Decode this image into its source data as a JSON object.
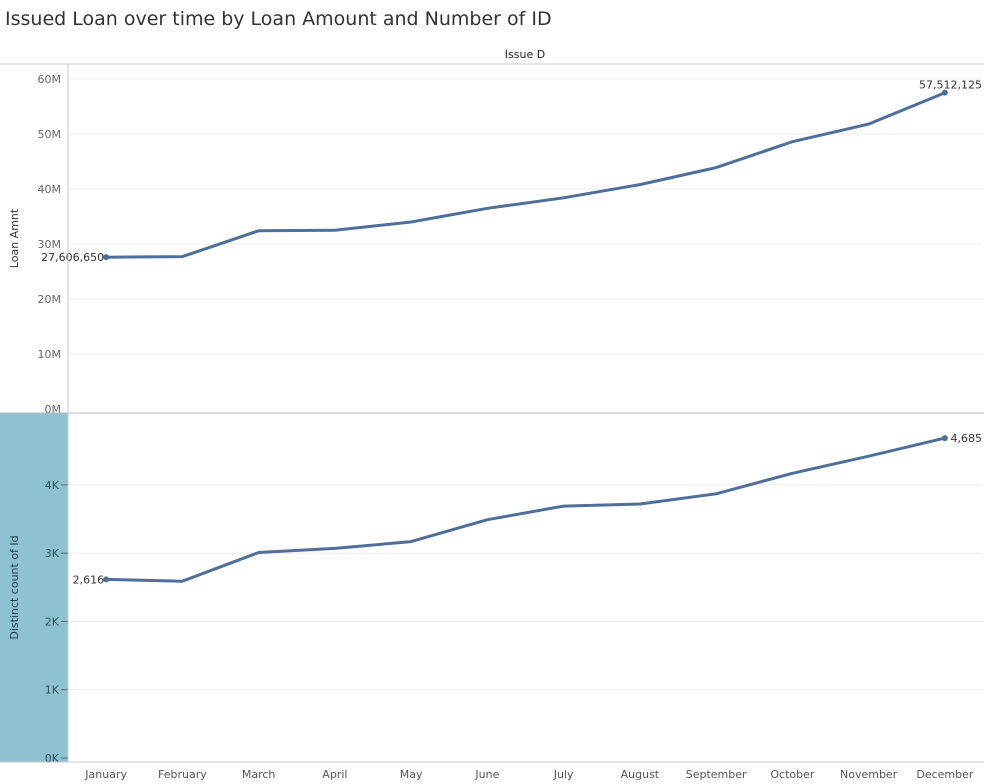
{
  "title": "Issued Loan over time by Loan Amount and Number of ID",
  "chart_data": [
    {
      "type": "line",
      "column_header": "Issue D",
      "ylabel": "Loan Amnt",
      "categories": [
        "January",
        "February",
        "March",
        "April",
        "May",
        "June",
        "July",
        "August",
        "September",
        "October",
        "November",
        "December"
      ],
      "values": [
        27606650,
        27700000,
        32400000,
        32500000,
        34000000,
        36500000,
        38400000,
        40800000,
        43900000,
        48600000,
        51800000,
        57512125
      ],
      "ylim": [
        0,
        62000000
      ],
      "yticks": [
        0,
        10000000,
        20000000,
        30000000,
        40000000,
        50000000,
        60000000
      ],
      "ytick_labels": [
        "0M",
        "10M",
        "20M",
        "30M",
        "40M",
        "50M",
        "60M"
      ],
      "labels": {
        "first": "27,606,650",
        "last": "57,512,125"
      },
      "color": "#4e6f99",
      "grid": true
    },
    {
      "type": "line",
      "ylabel": "Distinct count of Id",
      "categories": [
        "January",
        "February",
        "March",
        "April",
        "May",
        "June",
        "July",
        "August",
        "September",
        "October",
        "November",
        "December"
      ],
      "values": [
        2616,
        2590,
        3010,
        3070,
        3170,
        3490,
        3690,
        3720,
        3870,
        4170,
        4420,
        4685
      ],
      "ylim": [
        0,
        4980
      ],
      "yticks": [
        0,
        1000,
        2000,
        3000,
        4000
      ],
      "ytick_labels": [
        "0K",
        "1K",
        "2K",
        "3K",
        "4K"
      ],
      "labels": {
        "first": "2,616",
        "last": "4,685"
      },
      "color": "#4e6f99",
      "label_band_color": "#8fc2d1",
      "grid": true
    }
  ]
}
